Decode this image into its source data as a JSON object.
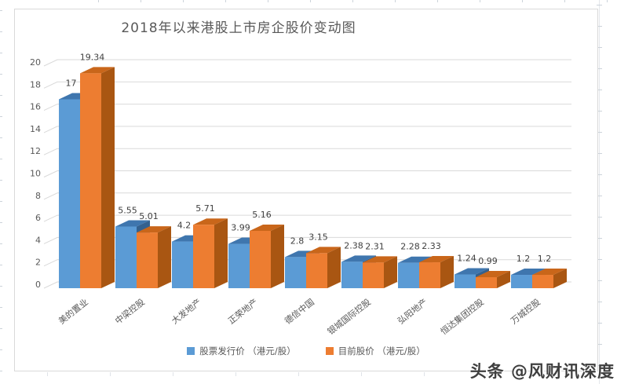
{
  "chart_data": {
    "type": "bar",
    "style": "3d-clustered-column",
    "title": "2018年以来港股上市房企股价变动图",
    "categories": [
      "美的置业",
      "中梁控股",
      "大发地产",
      "正荣地产",
      "德信中国",
      "银城国际控股",
      "弘阳地产",
      "恒达集团控股",
      "万城控股"
    ],
    "series": [
      {
        "name": "股票发行价 （港元/股）",
        "color": "#5B9BD5",
        "color_top": "#3F76AE",
        "color_side": "#34618F",
        "values": [
          17,
          5.55,
          4.2,
          3.99,
          2.8,
          2.38,
          2.28,
          1.24,
          1.2
        ]
      },
      {
        "name": "目前股价 （港元/股）",
        "color": "#ED7D31",
        "color_top": "#C9661A",
        "color_side": "#A95612",
        "values": [
          19.34,
          5.01,
          5.71,
          5.16,
          3.15,
          2.31,
          2.33,
          0.99,
          1.2
        ]
      }
    ],
    "ylim": [
      0,
      20
    ],
    "ytick_step": 2,
    "grid": true,
    "legend_position": "bottom",
    "gridline_color": "#D9D9D9",
    "axis_text_color": "#595959",
    "label_text_color": "#404040"
  },
  "watermark": {
    "text": "头条 @风财讯深度"
  }
}
